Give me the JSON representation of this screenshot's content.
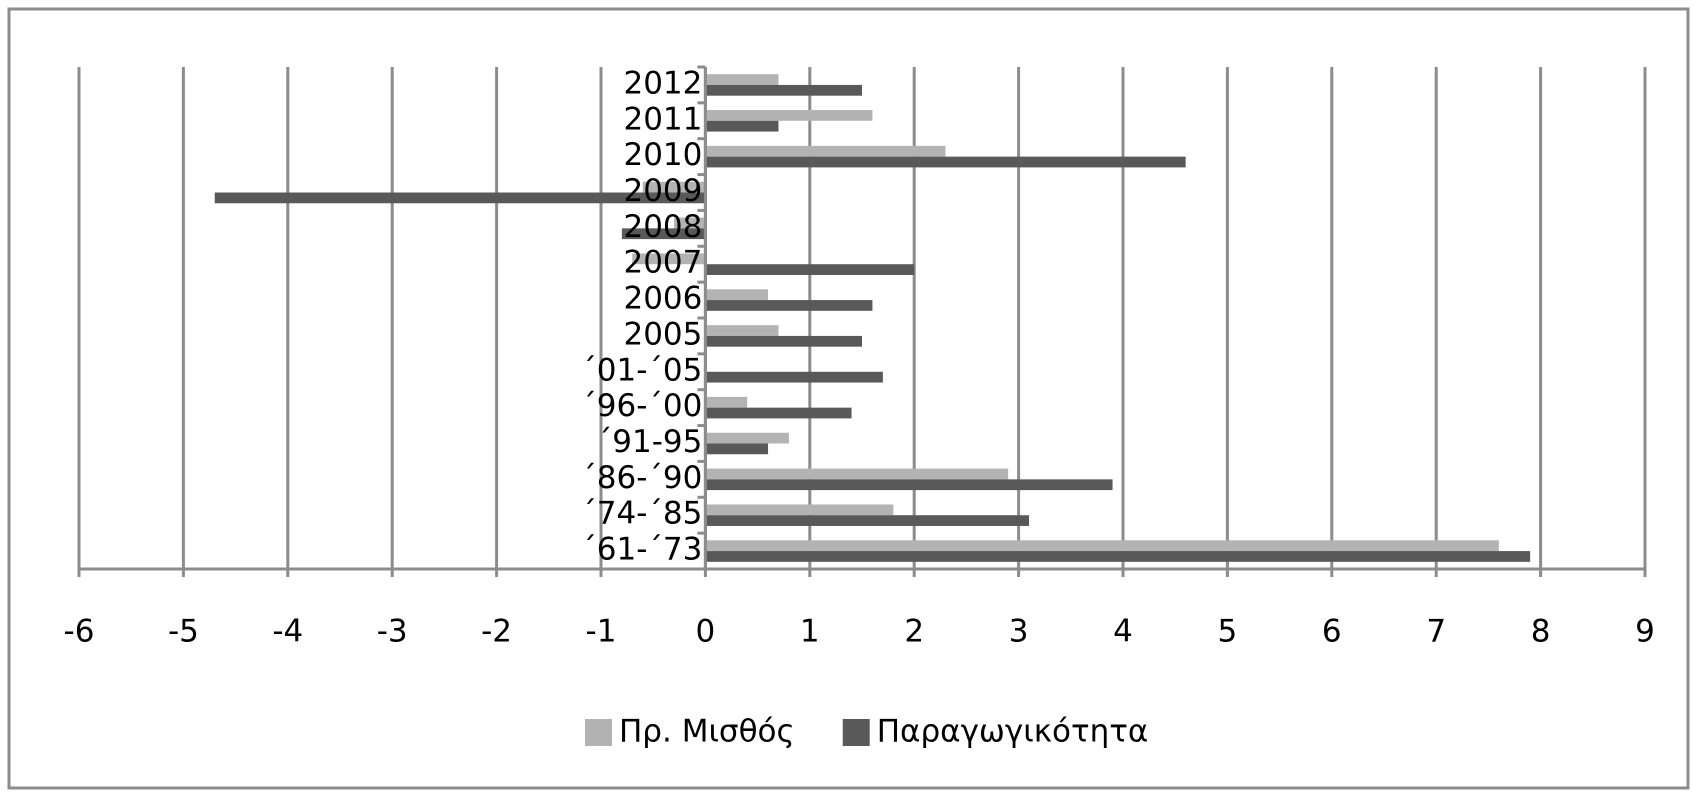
{
  "chart_data": {
    "type": "hbar",
    "categories": [
      "´61-´73",
      "´74-´85",
      "´86-´90",
      "´91-95",
      "´96-´00",
      "´01-´05",
      "2005",
      "2006",
      "2007",
      "2008",
      "2009",
      "2010",
      "2011",
      "2012"
    ],
    "series": [
      {
        "name": "Πρ. Μισθός",
        "color": "#b3b3b3",
        "values": [
          7.6,
          1.8,
          2.9,
          0.8,
          0.4,
          0.0,
          0.7,
          0.6,
          -0.7,
          -0.3,
          -0.6,
          2.3,
          1.6,
          0.7
        ]
      },
      {
        "name": "Παραγωγικότητα",
        "color": "#595959",
        "values": [
          7.9,
          3.1,
          3.9,
          0.6,
          1.4,
          1.7,
          1.5,
          1.6,
          2.0,
          -0.8,
          -4.7,
          4.6,
          0.7,
          1.5
        ]
      }
    ],
    "xlim": [
      -6,
      9
    ],
    "xticks": [
      -6,
      -5,
      -4,
      -3,
      -2,
      -1,
      0,
      1,
      2,
      3,
      4,
      5,
      6,
      7,
      8,
      9
    ],
    "grid": true,
    "legend": "bottom"
  }
}
